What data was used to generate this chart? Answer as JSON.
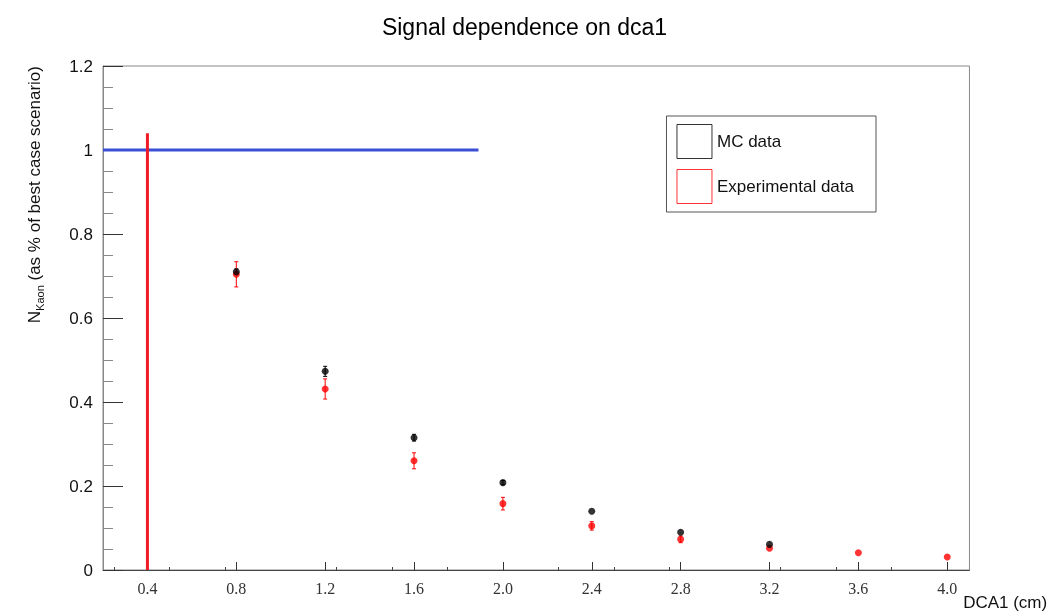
{
  "chart_data": {
    "type": "scatter",
    "title": "Signal dependence on dca1",
    "xlabel": "DCA1 (cm)",
    "ylabel": "N$_{Kaon}$ (as % of best case scenario)",
    "x": [
      0.8,
      1.2,
      1.6,
      2.0,
      2.4,
      2.8,
      3.2,
      3.6,
      4.0
    ],
    "series": [
      {
        "name": "MC data",
        "color": "#000000",
        "values": [
          0.71,
          0.473,
          0.315,
          0.208,
          0.14,
          0.09,
          0.061,
          null,
          null
        ],
        "errors": [
          0.007,
          0.012,
          0.008,
          0.005,
          null,
          null,
          null,
          null,
          null
        ]
      },
      {
        "name": "Experimental data",
        "color": "#ff0000",
        "values": [
          0.704,
          0.431,
          0.26,
          0.158,
          0.105,
          0.073,
          0.052,
          0.041,
          0.031
        ],
        "errors": [
          0.03,
          0.024,
          0.019,
          0.015,
          0.01,
          0.008,
          null,
          null,
          null
        ]
      },
      {
        "type": "line",
        "color": "#3b4fd6",
        "marker": "none",
        "x": [
          0.2,
          1.89
        ],
        "values": [
          1,
          1
        ]
      },
      {
        "type": "line",
        "color": "#ee1c25",
        "marker": "none",
        "x": [
          0.4,
          0.4
        ],
        "values": [
          0,
          1.04
        ]
      }
    ],
    "xlim": [
      0.2,
      4.1
    ],
    "xticks": [
      0.4,
      0.8,
      1.2,
      1.6,
      {
        "value": 2,
        "label": "2.0"
      },
      2.4,
      2.8,
      3.2,
      3.6,
      {
        "value": 4,
        "label": "4.0"
      }
    ],
    "ylim": [
      0,
      1.2
    ],
    "yticks": [
      0,
      0.2,
      0.4,
      0.6,
      0.8,
      1,
      1.2
    ],
    "marker": "circle",
    "grid": false,
    "legend": "top right"
  }
}
